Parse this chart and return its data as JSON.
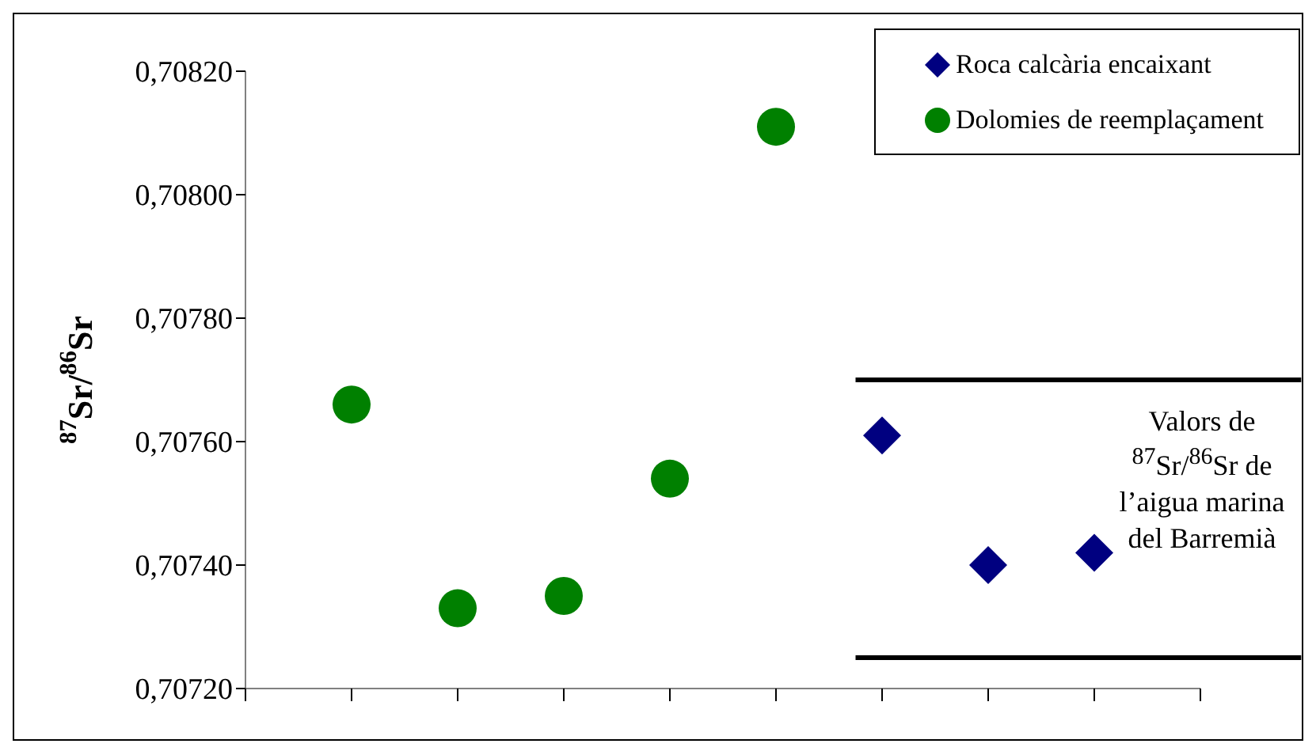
{
  "chart_data": {
    "type": "scatter",
    "ylabel": "$^{87}$Sr/$^{86}$Sr",
    "categories": [
      null,
      null,
      null,
      null,
      null,
      null,
      null,
      null
    ],
    "ylim": [
      0.7072,
      0.7082
    ],
    "yticks": [
      {
        "value": 0.7072,
        "label": "0,70720"
      },
      {
        "value": 0.7074,
        "label": "0,70740"
      },
      {
        "value": 0.7076,
        "label": "0,70760"
      },
      {
        "value": 0.7078,
        "label": "0,70780"
      },
      {
        "value": 0.708,
        "label": "0,70800"
      },
      {
        "value": 0.7082,
        "label": "0,70820"
      }
    ],
    "tick_labels": "y",
    "grid": false,
    "legend": "top right",
    "series": [
      {
        "name": "Roca calcària encaixant",
        "color": "#000080",
        "marker": "diamond",
        "values": [
          null,
          null,
          null,
          null,
          null,
          0.70761,
          0.7074,
          0.70742
        ]
      },
      {
        "name": "Dolomies de reemplaçament",
        "color": "#008000",
        "marker": "circle",
        "values": [
          0.70766,
          0.70733,
          0.70735,
          0.70754,
          0.70811,
          null,
          null,
          null
        ]
      }
    ],
    "ref_lines": [
      {
        "axis": "y",
        "value": 0.7077,
        "color": "#000000"
      },
      {
        "axis": "y",
        "value": 0.70725,
        "color": "#000000"
      }
    ],
    "annotations": [
      "Valors de $^{87}$Sr/$^{86}$Sr de l’aigua marina del Barremià"
    ]
  }
}
